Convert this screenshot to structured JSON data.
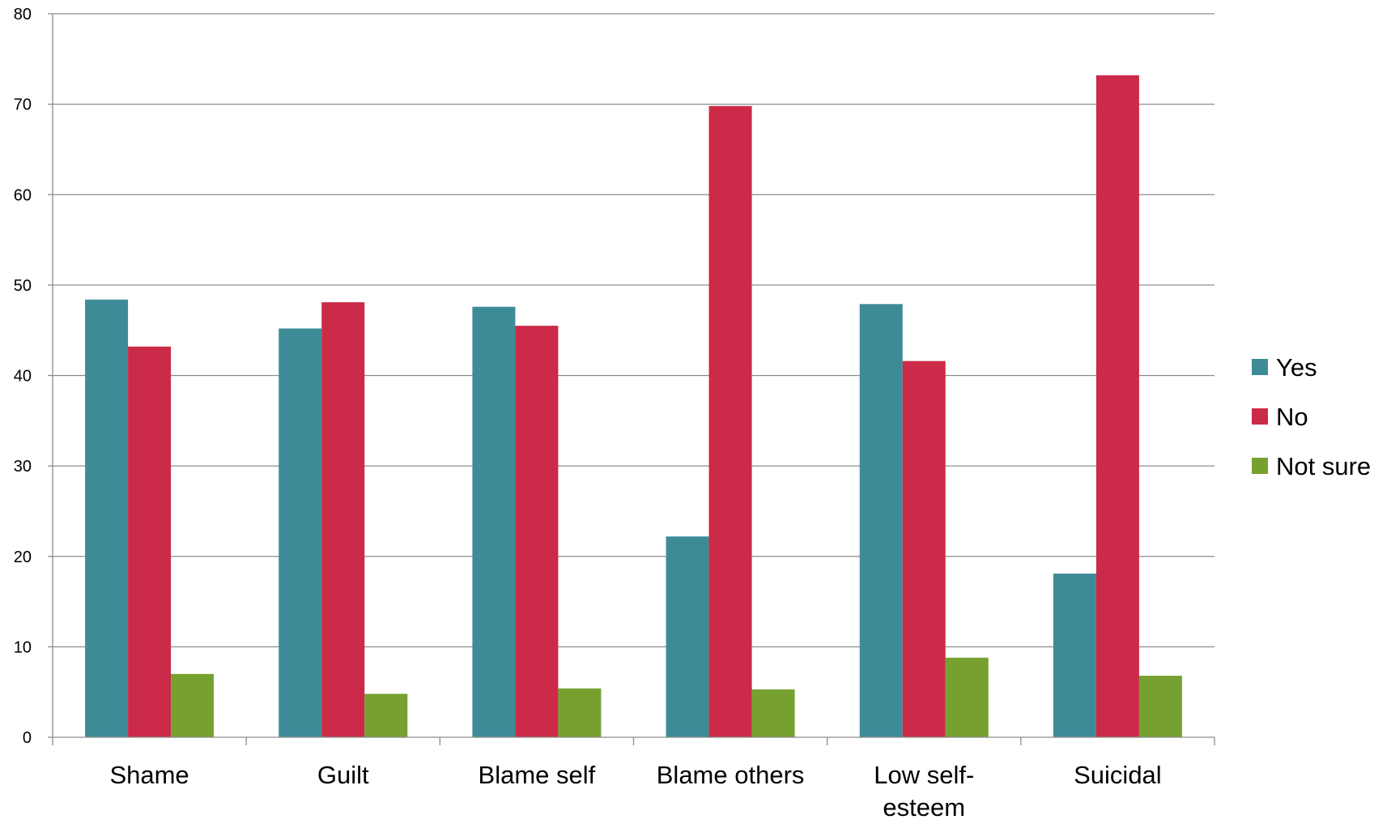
{
  "chart_data": {
    "type": "bar",
    "title": "",
    "xlabel": "",
    "ylabel": "",
    "ylim": [
      0,
      80
    ],
    "yticks": [
      0,
      10,
      20,
      30,
      40,
      50,
      60,
      70,
      80
    ],
    "grid": true,
    "legend_position": "right",
    "categories": [
      [
        "Shame"
      ],
      [
        "Guilt"
      ],
      [
        "Blame self"
      ],
      [
        "Blame others"
      ],
      [
        "Low self-",
        "esteem"
      ],
      [
        "Suicidal"
      ]
    ],
    "series": [
      {
        "name": "Yes",
        "color": "#3E8B98",
        "values": [
          48.4,
          45.2,
          47.6,
          22.2,
          47.9,
          18.1
        ]
      },
      {
        "name": "No",
        "color": "#CB2A48",
        "values": [
          43.2,
          48.1,
          45.5,
          69.8,
          41.6,
          73.2
        ]
      },
      {
        "name": "Not sure",
        "color": "#76A130",
        "values": [
          7.0,
          4.8,
          5.4,
          5.3,
          8.8,
          6.8
        ]
      }
    ]
  }
}
